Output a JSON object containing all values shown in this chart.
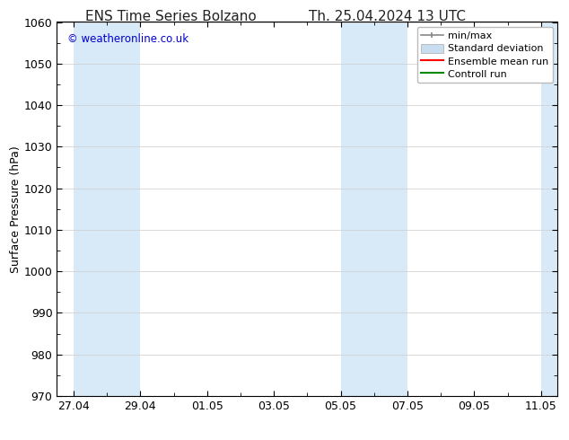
{
  "title_left": "ENS Time Series Bolzano",
  "title_right": "Th. 25.04.2024 13 UTC",
  "ylabel": "Surface Pressure (hPa)",
  "ylim": [
    970,
    1060
  ],
  "yticks": [
    970,
    980,
    990,
    1000,
    1010,
    1020,
    1030,
    1040,
    1050,
    1060
  ],
  "xtick_labels": [
    "27.04",
    "29.04",
    "01.05",
    "03.05",
    "05.05",
    "07.05",
    "09.05",
    "11.05"
  ],
  "watermark": "© weatheronline.co.uk",
  "watermark_color": "#0000cc",
  "background_color": "#ffffff",
  "plot_bg_color": "#ffffff",
  "shaded_color": "#d8eaf8",
  "legend_entries": [
    {
      "label": "min/max"
    },
    {
      "label": "Standard deviation"
    },
    {
      "label": "Ensemble mean run"
    },
    {
      "label": "Controll run"
    }
  ],
  "minmax_color": "#888888",
  "std_color": "#c8ddf0",
  "ensemble_color": "#ff0000",
  "control_color": "#008800",
  "spine_color": "#000000",
  "tick_color": "#000000",
  "font_size": 9,
  "title_font_size": 11,
  "legend_font_size": 8
}
